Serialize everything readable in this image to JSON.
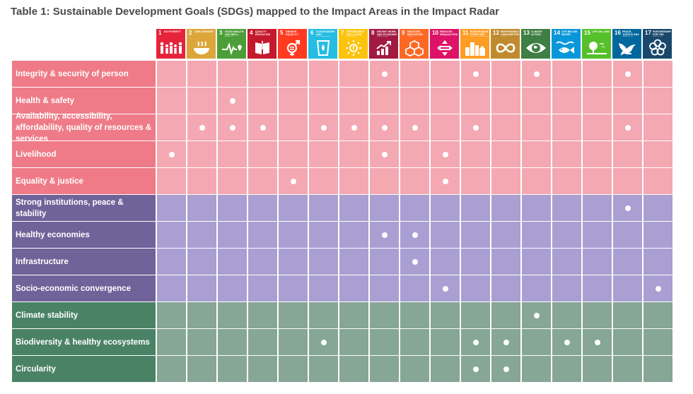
{
  "title": "Table 1: Sustainable Development Goals (SDGs) mapped to the Impact Areas in the Impact Radar",
  "sdgs": [
    {
      "num": "1",
      "name": "No poverty",
      "color": "#e5243b",
      "icon": "people-icon"
    },
    {
      "num": "2",
      "name": "Zero hunger",
      "color": "#dda63a",
      "icon": "bowl-icon"
    },
    {
      "num": "3",
      "name": "Good health and well-being",
      "color": "#4c9f38",
      "icon": "heartbeat-icon"
    },
    {
      "num": "4",
      "name": "Quality education",
      "color": "#c5192d",
      "icon": "book-icon"
    },
    {
      "num": "5",
      "name": "Gender equality",
      "color": "#ff3a21",
      "icon": "gender-icon"
    },
    {
      "num": "6",
      "name": "Clean water and sanitation",
      "color": "#26bde2",
      "icon": "water-glass-icon"
    },
    {
      "num": "7",
      "name": "Affordable and clean energy",
      "color": "#fcc30b",
      "icon": "sun-power-icon"
    },
    {
      "num": "8",
      "name": "Decent work and economic growth",
      "color": "#a21942",
      "icon": "growth-chart-icon"
    },
    {
      "num": "9",
      "name": "Industry, innovation and infrastructure",
      "color": "#fd6925",
      "icon": "cubes-icon"
    },
    {
      "num": "10",
      "name": "Reduced inequalities",
      "color": "#dd1367",
      "icon": "equals-icon"
    },
    {
      "num": "11",
      "name": "Sustainable cities and communities",
      "color": "#fd9d24",
      "icon": "buildings-icon"
    },
    {
      "num": "12",
      "name": "Responsible consumption and production",
      "color": "#bf8b2e",
      "icon": "infinity-icon"
    },
    {
      "num": "13",
      "name": "Climate action",
      "color": "#3f7e44",
      "icon": "eye-globe-icon"
    },
    {
      "num": "14",
      "name": "Life below water",
      "color": "#0a97d9",
      "icon": "fish-icon"
    },
    {
      "num": "15",
      "name": "Life on land",
      "color": "#56c02b",
      "icon": "tree-bird-icon"
    },
    {
      "num": "16",
      "name": "Peace, justice and strong institutions",
      "color": "#00689d",
      "icon": "dove-icon"
    },
    {
      "num": "17",
      "name": "Partnerships for the goals",
      "color": "#19486a",
      "icon": "flower-rings-icon"
    }
  ],
  "rows": [
    {
      "label": "Integrity & security of person",
      "group": "people",
      "marks": [
        8,
        11,
        13,
        16
      ]
    },
    {
      "label": "Health & safety",
      "group": "people",
      "marks": [
        3
      ]
    },
    {
      "label": "Availability, accessibility, affordability, quality of resources & services",
      "group": "people",
      "marks": [
        2,
        3,
        4,
        6,
        7,
        8,
        9,
        11,
        16
      ]
    },
    {
      "label": "Livelihood",
      "group": "people",
      "marks": [
        1,
        8,
        10
      ]
    },
    {
      "label": "Equality & justice",
      "group": "people",
      "marks": [
        5,
        10
      ]
    },
    {
      "label": "Strong institutions, peace & stability",
      "group": "prosperity",
      "marks": [
        16
      ]
    },
    {
      "label": "Healthy economies",
      "group": "prosperity",
      "marks": [
        8,
        9
      ]
    },
    {
      "label": "Infrastructure",
      "group": "prosperity",
      "marks": [
        9
      ]
    },
    {
      "label": "Socio-economic convergence",
      "group": "prosperity",
      "marks": [
        10,
        17
      ]
    },
    {
      "label": "Climate stability",
      "group": "planet",
      "marks": [
        13
      ]
    },
    {
      "label": "Biodiversity & healthy ecosystems",
      "group": "planet",
      "marks": [
        6,
        11,
        12,
        14,
        15
      ]
    },
    {
      "label": "Circularity",
      "group": "planet",
      "marks": [
        11,
        12
      ]
    }
  ]
}
